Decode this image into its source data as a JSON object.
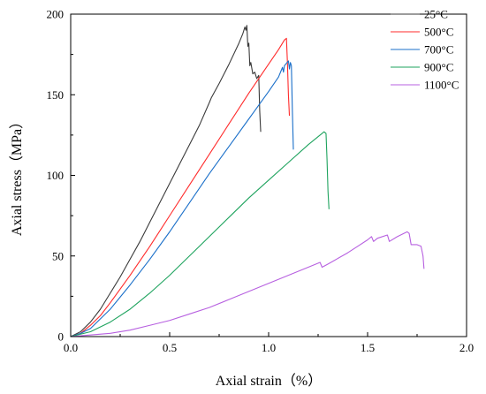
{
  "chart_data": {
    "type": "line",
    "xlabel": "Axial strain（%）",
    "ylabel": "Axial stress（MPa）",
    "xlim": [
      0,
      2.0
    ],
    "ylim": [
      0,
      200
    ],
    "x_ticks": [
      "0.0",
      "0.5",
      "1.0",
      "1.5",
      "2.0"
    ],
    "y_ticks": [
      "0",
      "50",
      "100",
      "150",
      "200"
    ],
    "grid": false,
    "legend_position": "top-right",
    "series": [
      {
        "name": "25°C",
        "color": "#3a3a3a",
        "points": [
          [
            0,
            0
          ],
          [
            0.05,
            3
          ],
          [
            0.1,
            9
          ],
          [
            0.15,
            17
          ],
          [
            0.2,
            27
          ],
          [
            0.25,
            37
          ],
          [
            0.3,
            48
          ],
          [
            0.35,
            59
          ],
          [
            0.4,
            71
          ],
          [
            0.45,
            83
          ],
          [
            0.5,
            95
          ],
          [
            0.55,
            107
          ],
          [
            0.6,
            119
          ],
          [
            0.65,
            131
          ],
          [
            0.7,
            145
          ],
          [
            0.71,
            148
          ],
          [
            0.75,
            157
          ],
          [
            0.8,
            169
          ],
          [
            0.85,
            182
          ],
          [
            0.87,
            188
          ],
          [
            0.88,
            192
          ],
          [
            0.885,
            190
          ],
          [
            0.89,
            193
          ],
          [
            0.895,
            180
          ],
          [
            0.9,
            182
          ],
          [
            0.905,
            168
          ],
          [
            0.91,
            170
          ],
          [
            0.92,
            163
          ],
          [
            0.93,
            164
          ],
          [
            0.94,
            160
          ],
          [
            0.95,
            162
          ],
          [
            0.955,
            140
          ],
          [
            0.96,
            127
          ]
        ]
      },
      {
        "name": "500°C",
        "color": "#ff2b2b",
        "points": [
          [
            0,
            0
          ],
          [
            0.05,
            2
          ],
          [
            0.1,
            7
          ],
          [
            0.15,
            13
          ],
          [
            0.2,
            21
          ],
          [
            0.3,
            38
          ],
          [
            0.4,
            56
          ],
          [
            0.5,
            75
          ],
          [
            0.6,
            94
          ],
          [
            0.7,
            113
          ],
          [
            0.8,
            132
          ],
          [
            0.9,
            151
          ],
          [
            1.0,
            169
          ],
          [
            1.05,
            178
          ],
          [
            1.08,
            184
          ],
          [
            1.09,
            185
          ],
          [
            1.095,
            170
          ],
          [
            1.1,
            150
          ],
          [
            1.105,
            137
          ]
        ]
      },
      {
        "name": "700°C",
        "color": "#1a6fc9",
        "points": [
          [
            0,
            0
          ],
          [
            0.05,
            2
          ],
          [
            0.1,
            5
          ],
          [
            0.2,
            17
          ],
          [
            0.3,
            32
          ],
          [
            0.4,
            48
          ],
          [
            0.5,
            65
          ],
          [
            0.6,
            83
          ],
          [
            0.7,
            101
          ],
          [
            0.8,
            118
          ],
          [
            0.9,
            135
          ],
          [
            1.0,
            152
          ],
          [
            1.05,
            161
          ],
          [
            1.07,
            167
          ],
          [
            1.075,
            164
          ],
          [
            1.08,
            168
          ],
          [
            1.1,
            171
          ],
          [
            1.105,
            166
          ],
          [
            1.11,
            170
          ],
          [
            1.115,
            168
          ],
          [
            1.12,
            140
          ],
          [
            1.125,
            116
          ]
        ]
      },
      {
        "name": "900°C",
        "color": "#1ea35e",
        "points": [
          [
            0,
            0
          ],
          [
            0.1,
            3
          ],
          [
            0.2,
            9
          ],
          [
            0.3,
            17
          ],
          [
            0.4,
            27
          ],
          [
            0.5,
            38
          ],
          [
            0.6,
            50
          ],
          [
            0.7,
            62
          ],
          [
            0.8,
            74
          ],
          [
            0.9,
            86
          ],
          [
            1.0,
            97
          ],
          [
            1.1,
            108
          ],
          [
            1.2,
            119
          ],
          [
            1.25,
            124
          ],
          [
            1.27,
            126
          ],
          [
            1.28,
            127
          ],
          [
            1.29,
            126
          ],
          [
            1.295,
            110
          ],
          [
            1.3,
            90
          ],
          [
            1.305,
            79
          ]
        ]
      },
      {
        "name": "1100°C",
        "color": "#b760e0",
        "points": [
          [
            0,
            0
          ],
          [
            0.1,
            1
          ],
          [
            0.2,
            2
          ],
          [
            0.3,
            4
          ],
          [
            0.4,
            7
          ],
          [
            0.5,
            10
          ],
          [
            0.6,
            14
          ],
          [
            0.7,
            18
          ],
          [
            0.8,
            23
          ],
          [
            0.9,
            28
          ],
          [
            1.0,
            33
          ],
          [
            1.1,
            38
          ],
          [
            1.2,
            43
          ],
          [
            1.26,
            46
          ],
          [
            1.27,
            43
          ],
          [
            1.3,
            45
          ],
          [
            1.4,
            52
          ],
          [
            1.45,
            56
          ],
          [
            1.5,
            60
          ],
          [
            1.52,
            62
          ],
          [
            1.53,
            59
          ],
          [
            1.55,
            61
          ],
          [
            1.6,
            63
          ],
          [
            1.61,
            59
          ],
          [
            1.65,
            62
          ],
          [
            1.7,
            65
          ],
          [
            1.71,
            64
          ],
          [
            1.72,
            57
          ],
          [
            1.75,
            57
          ],
          [
            1.77,
            56
          ],
          [
            1.78,
            50
          ],
          [
            1.785,
            42
          ]
        ]
      }
    ]
  }
}
